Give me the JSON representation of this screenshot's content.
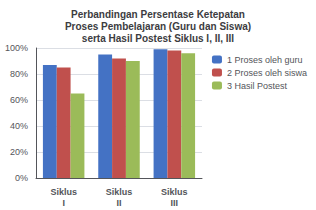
{
  "chart_data": {
    "type": "bar",
    "title": "Perbandingan Persentase Ketepatan\nProses Pembelajaran (Guru dan Siswa)\nserta Hasil Postest Siklus I, II, III",
    "categories": [
      "Siklus\nI",
      "Siklus\nII",
      "Siklus\nIII"
    ],
    "series": [
      {
        "name": "1 Proses oleh guru",
        "color": "#4472C4",
        "values": [
          87,
          95,
          99
        ]
      },
      {
        "name": "2 Proses oleh siswa",
        "color": "#C0504D",
        "values": [
          85,
          92,
          98
        ]
      },
      {
        "name": "3 Hasil Postest",
        "color": "#9BBB59",
        "values": [
          65,
          90,
          96
        ]
      }
    ],
    "ylim": [
      0,
      100
    ],
    "yticks": [
      {
        "value": 0,
        "label": "0%"
      },
      {
        "value": 20,
        "label": "20%"
      },
      {
        "value": 40,
        "label": "40%"
      },
      {
        "value": 60,
        "label": "60%"
      },
      {
        "value": 80,
        "label": "80%"
      },
      {
        "value": 100,
        "label": "100%"
      }
    ],
    "grid": true,
    "legend": "upper right"
  }
}
